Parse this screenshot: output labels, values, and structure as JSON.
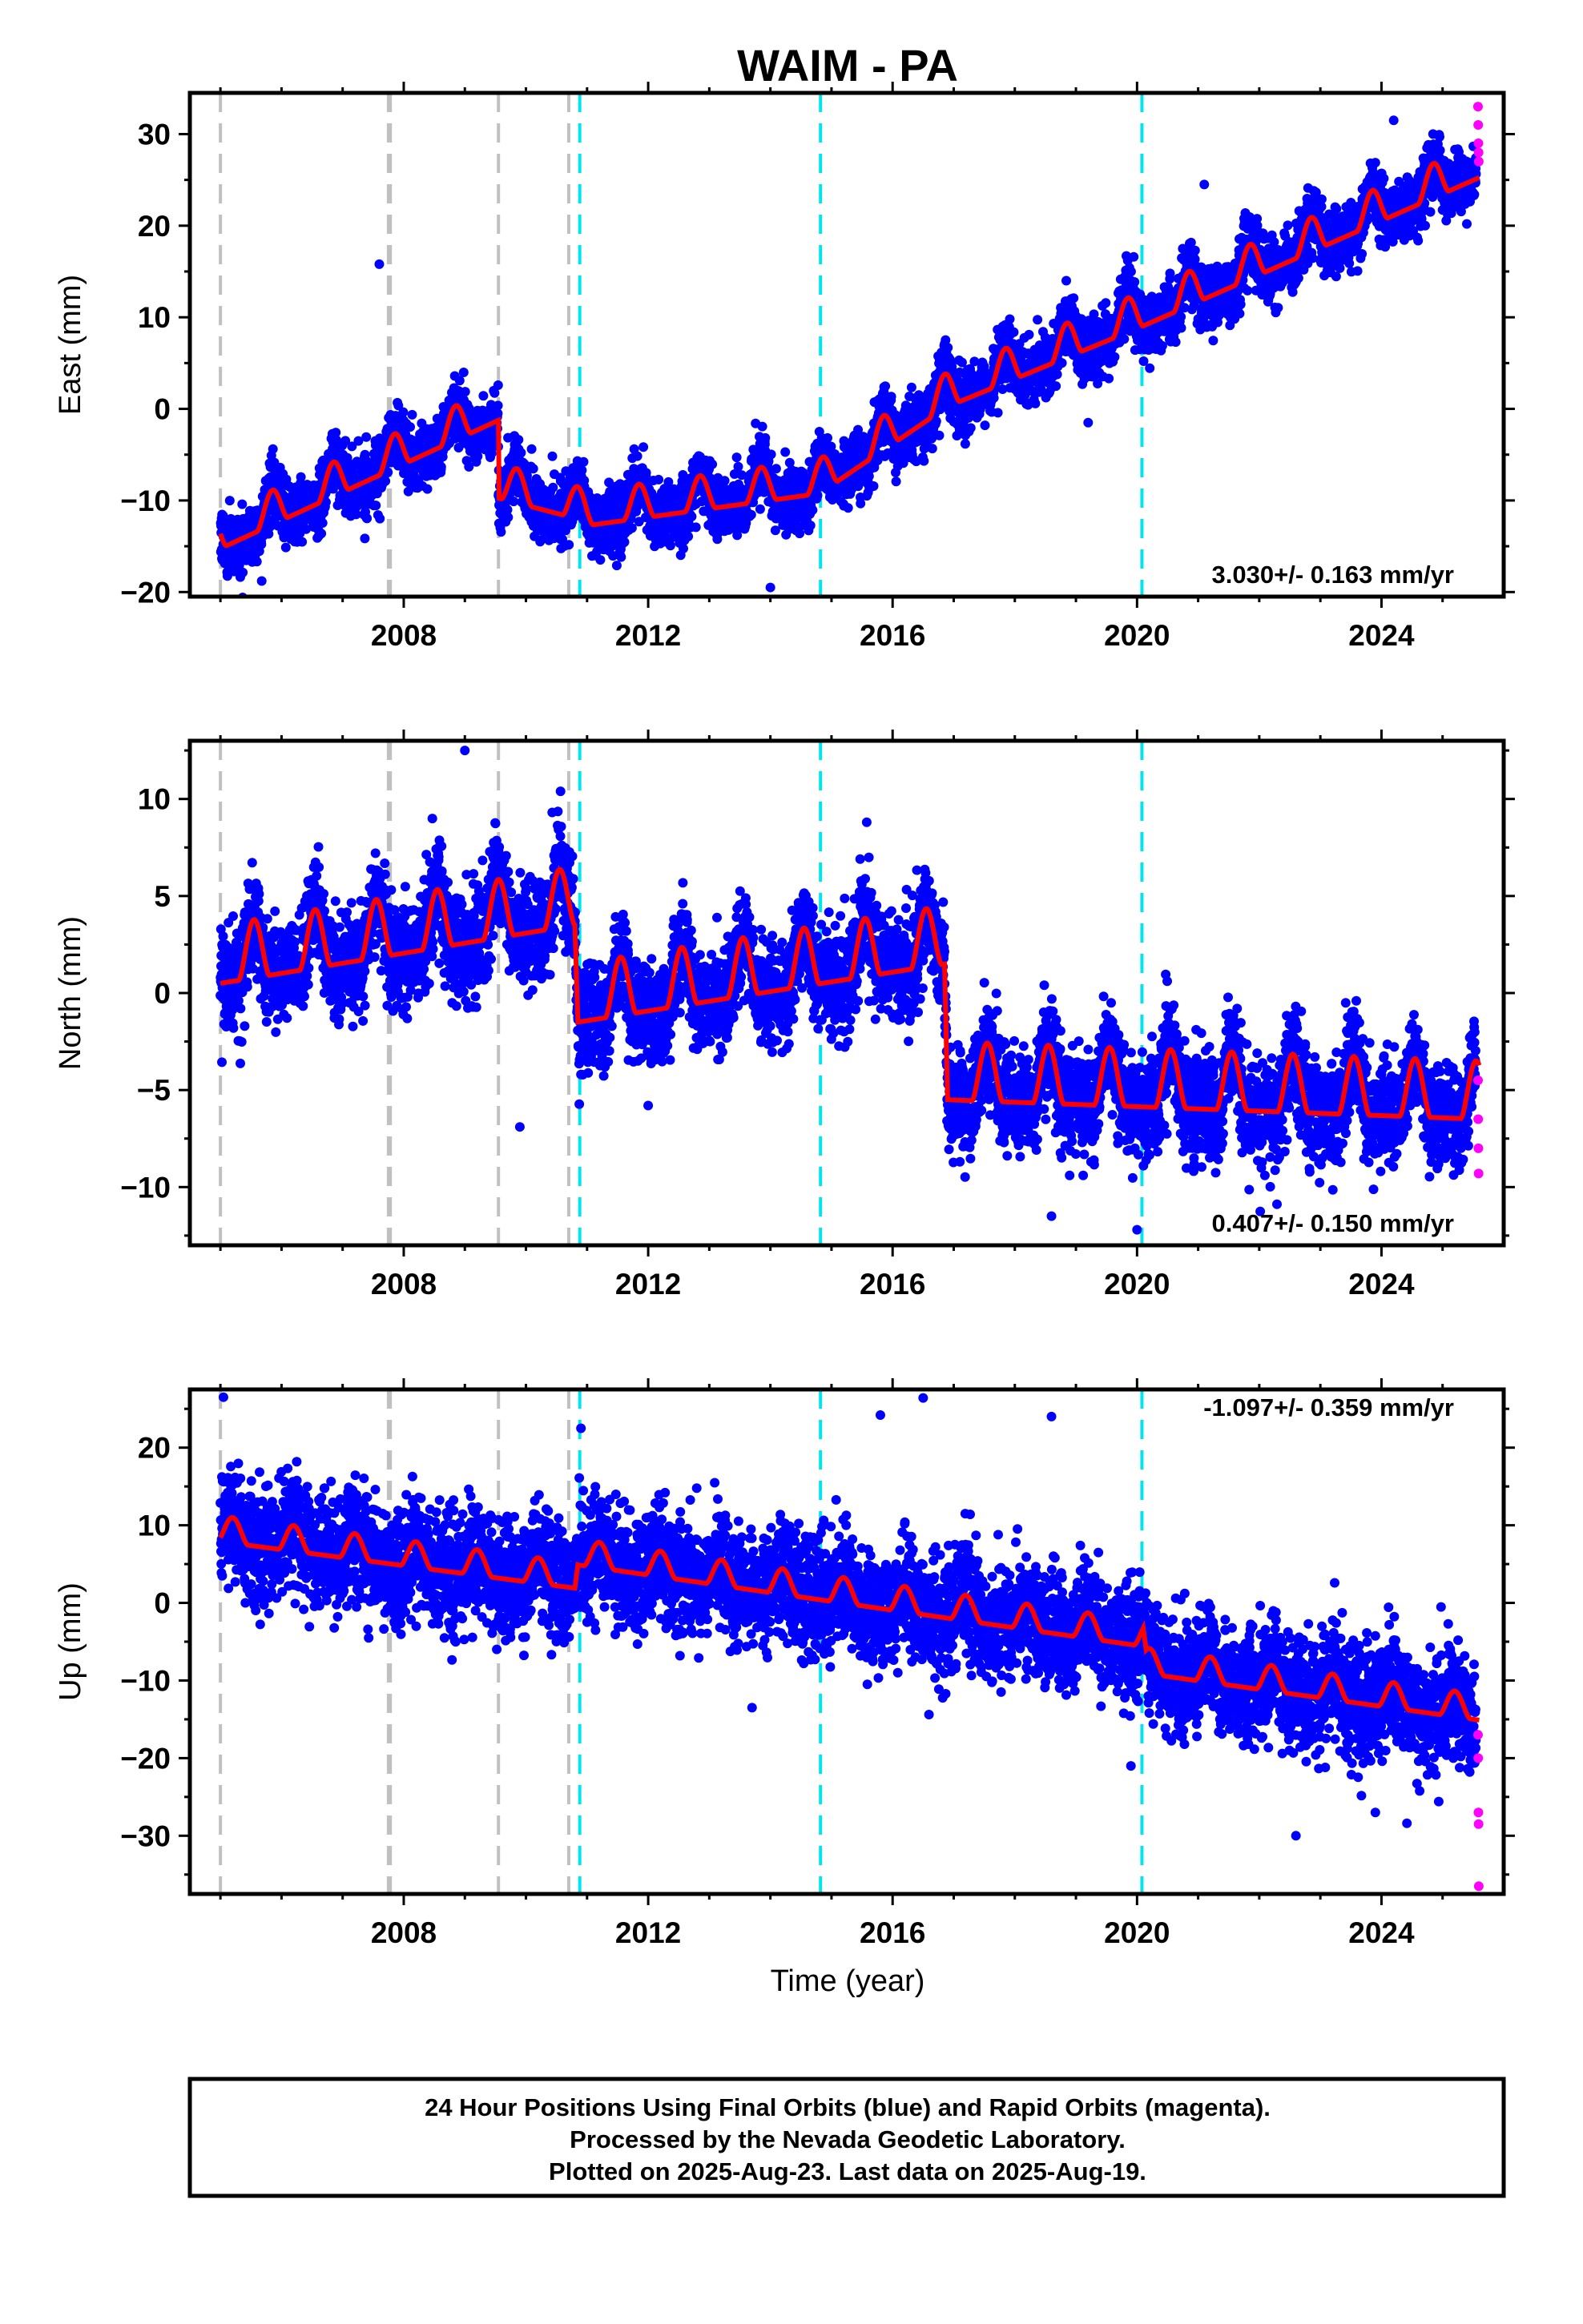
{
  "figure": {
    "title": "WAIM - PA",
    "xlabel": "Time (year)",
    "footer": [
      "24 Hour Positions Using Final Orbits (blue) and Rapid Orbits (magenta).",
      "Processed by the Nevada Geodetic Laboratory.",
      "Plotted on 2025-Aug-23. Last data on 2025-Aug-19."
    ]
  },
  "colors": {
    "final_orbits": "#0000ff",
    "rapid_orbits": "#ff00ff",
    "model": "#ff0000",
    "equipment_change": "#c0c0c0",
    "earthquake": "#00e5ee"
  },
  "chart_data": [
    {
      "type": "scatter",
      "ylabel": "East (mm)",
      "xlim": [
        2004.5,
        2026.0
      ],
      "ylim": [
        -20.5,
        34.5
      ],
      "xticks": [
        2008,
        2012,
        2016,
        2020,
        2024
      ],
      "yticks": [
        -20,
        -10,
        0,
        10,
        20,
        30
      ],
      "annotation": "3.030+/- 0.163 mm/yr",
      "rate": 3.03,
      "rate_sigma": 0.163,
      "trend_knots": [
        [
          2005.0,
          -14.0
        ],
        [
          2009.55,
          0.0
        ],
        [
          2009.55,
          -8.5
        ],
        [
          2010.7,
          -10.5
        ],
        [
          2011.0,
          -11.5
        ],
        [
          2014.8,
          -8.0
        ],
        [
          2016.9,
          1.5
        ],
        [
          2020.1,
          10.3
        ],
        [
          2025.6,
          26.5
        ]
      ],
      "seasonal_amplitude": 2.5,
      "seasonal_peak": 0.85,
      "scatter_sd": 1.6,
      "rapid_orbit_values": [
        33,
        31,
        29,
        28,
        27
      ],
      "outliers": [
        [
          2007.6,
          15.8
        ],
        [
          2014.0,
          -19.5
        ],
        [
          2019.2,
          -1.5
        ],
        [
          2024.2,
          31.5
        ],
        [
          2021.1,
          24.5
        ]
      ]
    },
    {
      "type": "scatter",
      "ylabel": "North (mm)",
      "xlim": [
        2004.5,
        2026.0
      ],
      "ylim": [
        -13.0,
        13.0
      ],
      "xticks": [
        2008,
        2012,
        2016,
        2020,
        2024
      ],
      "yticks": [
        -10,
        -5,
        0,
        5,
        10
      ],
      "annotation": "0.407+/- 0.150 mm/yr",
      "rate": 0.407,
      "rate_sigma": 0.15,
      "trend_knots": [
        [
          2005.0,
          1.5
        ],
        [
          2010.8,
          4.5
        ],
        [
          2010.85,
          -0.5
        ],
        [
          2016.85,
          2.5
        ],
        [
          2016.9,
          -4.5
        ],
        [
          2025.6,
          -5.5
        ]
      ],
      "seasonal_amplitude": 2.0,
      "seasonal_peak": 0.55,
      "scatter_sd": 1.3,
      "rapid_orbit_values": [
        -4.5,
        -6.5,
        -8.0,
        -9.3
      ],
      "outliers": [
        [
          2009.0,
          12.5
        ],
        [
          2009.9,
          -6.9
        ],
        [
          2010.9,
          -4.2
        ],
        [
          2018.6,
          -11.5
        ],
        [
          2020.0,
          -12.2
        ],
        [
          2012.0,
          -5.8
        ]
      ]
    },
    {
      "type": "scatter",
      "ylabel": "Up (mm)",
      "xlim": [
        2004.5,
        2026.0
      ],
      "ylim": [
        -37.5,
        27.5
      ],
      "xticks": [
        2008,
        2012,
        2016,
        2020,
        2024
      ],
      "yticks": [
        -30,
        -20,
        -10,
        0,
        10,
        20
      ],
      "annotation": "-1.097+/- 0.359 mm/yr",
      "rate": -1.097,
      "rate_sigma": 0.359,
      "trend_knots": [
        [
          2005.0,
          9.0
        ],
        [
          2010.8,
          3.0
        ],
        [
          2010.85,
          6.0
        ],
        [
          2020.1,
          -4.5
        ],
        [
          2020.15,
          -8.0
        ],
        [
          2025.6,
          -14.0
        ]
      ],
      "seasonal_amplitude": 2.2,
      "seasonal_peak": 0.2,
      "scatter_sd": 3.6,
      "rapid_orbit_values": [
        -17,
        -20,
        -27,
        -28.5,
        -36.5
      ],
      "outliers": [
        [
          2005.05,
          26.5
        ],
        [
          2010.9,
          22.5
        ],
        [
          2015.8,
          24.2
        ],
        [
          2016.5,
          26.4
        ],
        [
          2018.6,
          24.0
        ],
        [
          2022.6,
          -30.0
        ],
        [
          2023.9,
          -27.0
        ],
        [
          2013.7,
          -13.5
        ],
        [
          2019.9,
          -21.0
        ]
      ]
    }
  ],
  "equipment_changes": [
    2005.0,
    2007.75,
    2007.78,
    2009.55,
    2010.7
  ],
  "earthquakes": [
    2010.88,
    2014.82,
    2020.08
  ]
}
